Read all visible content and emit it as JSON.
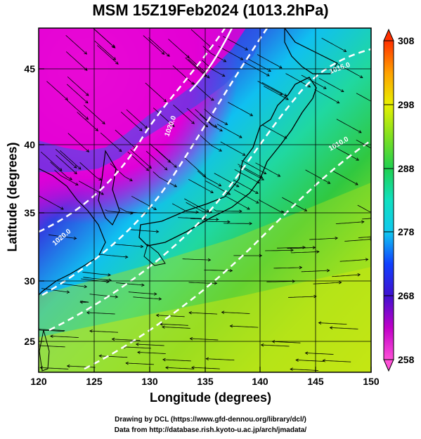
{
  "title": "MSM 15Z19Feb2024 (1013.2hPa)",
  "axes": {
    "xlabel": "Longitude (degrees)",
    "ylabel": "Latitude  (degrees)",
    "xticks": [
      "120",
      "125",
      "130",
      "135",
      "140",
      "145",
      "150"
    ],
    "yticks": [
      "25",
      "30",
      "35",
      "40",
      "45"
    ]
  },
  "colorbar": {
    "ticks": [
      "258",
      "268",
      "278",
      "288",
      "298",
      "308"
    ],
    "colors": [
      "#ff50d8",
      "#c000c8",
      "#4010d0",
      "#1040ff",
      "#10a0f0",
      "#10e0e0",
      "#10d880",
      "#20c020",
      "#a0e020",
      "#f0f000",
      "#ffa000",
      "#ff3000"
    ]
  },
  "map_labels": [
    "1020.0",
    "1020.0",
    "1015.0",
    "1010.0"
  ],
  "credits": {
    "line1": "Drawing by DCL (https://www.gfd-dennou.org/library/dcl/)",
    "line2": "Data from http://database.rish.kyoto-u.ac.jp/arch/jmadata/"
  }
}
